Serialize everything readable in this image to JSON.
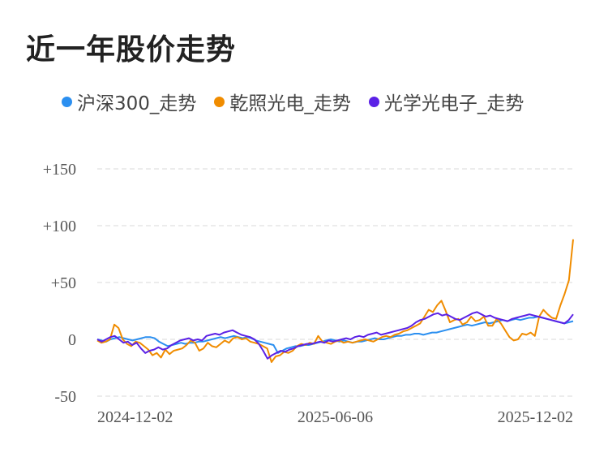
{
  "chart_data": {
    "type": "line",
    "title": "近一年股价走势",
    "xlabel": "",
    "ylabel": "",
    "ylim": [
      -50,
      150
    ],
    "yticks": [
      {
        "value": -50,
        "label": "-50"
      },
      {
        "value": 0,
        "label": "0"
      },
      {
        "value": 50,
        "label": "+50"
      },
      {
        "value": 100,
        "label": "+100"
      },
      {
        "value": 150,
        "label": "+150"
      }
    ],
    "xticks": [
      "2024-12-02",
      "2025-06-06",
      "2025-12-02"
    ],
    "xtick_positions": [
      0,
      0.5,
      1
    ],
    "grid": true,
    "legend_position": "top",
    "series": [
      {
        "name": "沪深300_走势",
        "color": "#2b8ff0",
        "values": [
          0,
          -1,
          -2,
          0,
          1,
          2,
          1,
          0,
          -1,
          0,
          1,
          2,
          2,
          1,
          -2,
          -4,
          -6,
          -5,
          -4,
          -3,
          -4,
          -3,
          -3,
          -2,
          -2,
          -1,
          0,
          1,
          2,
          1,
          2,
          3,
          2,
          1,
          2,
          1,
          -1,
          -2,
          -3,
          -4,
          -5,
          -12,
          -10,
          -8,
          -7,
          -6,
          -6,
          -5,
          -5,
          -4,
          -3,
          -2,
          -1,
          0,
          -1,
          -2,
          -1,
          -2,
          -3,
          -2,
          -2,
          -1,
          0,
          1,
          0,
          0,
          1,
          2,
          3,
          3,
          4,
          4,
          5,
          5,
          4,
          5,
          6,
          6,
          7,
          8,
          9,
          10,
          11,
          12,
          13,
          12,
          13,
          14,
          15,
          14,
          15,
          16,
          17,
          16,
          17,
          18,
          17,
          18,
          19,
          19,
          20,
          19,
          18,
          17,
          16,
          15,
          14,
          15,
          16
        ]
      },
      {
        "name": "乾照光电_走势",
        "color": "#f08c00",
        "values": [
          -1,
          -3,
          -2,
          0,
          13,
          10,
          0,
          -4,
          -6,
          -2,
          -3,
          -6,
          -9,
          -14,
          -12,
          -16,
          -9,
          -13,
          -10,
          -9,
          -8,
          -5,
          -1,
          -3,
          -10,
          -8,
          -3,
          -6,
          -7,
          -4,
          -1,
          -3,
          1,
          2,
          0,
          1,
          -2,
          -3,
          -4,
          -6,
          -8,
          -20,
          -15,
          -14,
          -11,
          -12,
          -10,
          -6,
          -4,
          -5,
          -3,
          -4,
          3,
          -2,
          -3,
          -4,
          -2,
          -1,
          -3,
          -2,
          -3,
          -2,
          -1,
          0,
          -1,
          -2,
          0,
          2,
          3,
          2,
          4,
          5,
          7,
          8,
          10,
          12,
          14,
          20,
          26,
          24,
          30,
          34,
          25,
          15,
          17,
          18,
          13,
          15,
          20,
          16,
          17,
          20,
          12,
          12,
          18,
          14,
          8,
          2,
          -1,
          0,
          5,
          4,
          6,
          3,
          20,
          26,
          22,
          19,
          18,
          30,
          40,
          52,
          88
        ]
      },
      {
        "name": "光学光电子_走势",
        "color": "#5b21e6",
        "values": [
          0,
          -2,
          0,
          2,
          3,
          0,
          -3,
          -2,
          -5,
          -3,
          -8,
          -12,
          -10,
          -9,
          -7,
          -9,
          -8,
          -5,
          -3,
          -1,
          0,
          1,
          -1,
          0,
          -1,
          3,
          4,
          5,
          4,
          6,
          7,
          8,
          6,
          4,
          3,
          2,
          0,
          -4,
          -10,
          -17,
          -14,
          -12,
          -10,
          -11,
          -9,
          -8,
          -6,
          -5,
          -4,
          -4,
          -3,
          -2,
          -3,
          -1,
          -2,
          -1,
          0,
          1,
          0,
          2,
          3,
          2,
          4,
          5,
          6,
          4,
          5,
          6,
          7,
          8,
          9,
          10,
          12,
          15,
          17,
          18,
          20,
          22,
          23,
          21,
          22,
          20,
          18,
          17,
          19,
          21,
          23,
          24,
          22,
          20,
          21,
          19,
          18,
          17,
          16,
          18,
          19,
          20,
          21,
          22,
          21,
          20,
          19,
          18,
          17,
          16,
          15,
          14,
          17,
          22
        ]
      }
    ]
  }
}
